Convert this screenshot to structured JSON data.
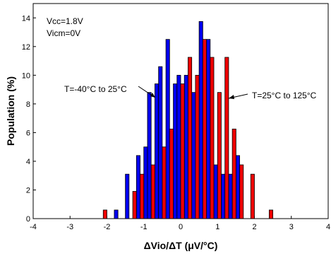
{
  "chart_data": {
    "type": "bar",
    "xlabel": "ΔVio/ΔT (μV/°C)",
    "ylabel": "Population (%)",
    "xlim": [
      -4,
      4
    ],
    "ylim": [
      0,
      15
    ],
    "xticks": [
      "-4",
      "-3",
      "-2",
      "-1",
      "0",
      "1",
      "2",
      "3",
      "4"
    ],
    "yticks": [
      "0",
      "2",
      "4",
      "6",
      "8",
      "10",
      "12",
      "14"
    ],
    "bar_width": 0.1,
    "grid": false,
    "annotations": {
      "conditions": [
        "Vcc=1.8V",
        "Vicm=0V"
      ],
      "label_left": "T=-40°C to 25°C",
      "label_right": "T=25°C to 125°C"
    },
    "series": [
      {
        "name": "T=-40°C to 25°C",
        "color": "#0000ee",
        "x": [
          -1.75,
          -1.45,
          -1.15,
          -0.95,
          -0.85,
          -0.65,
          -0.55,
          -0.35,
          -0.15,
          -0.05,
          0.15,
          0.35,
          0.55,
          0.75,
          0.95,
          1.15,
          1.35,
          1.55
        ],
        "values": [
          0.6,
          3.1,
          4.4,
          5.0,
          8.8,
          9.4,
          10.6,
          12.5,
          9.4,
          10.0,
          10.0,
          8.8,
          13.75,
          12.5,
          3.75,
          3.1,
          3.1,
          4.4
        ]
      },
      {
        "name": "T=25°C to 125°C",
        "color": "#ee0000",
        "x": [
          -2.05,
          -1.25,
          -1.05,
          -0.75,
          -0.45,
          -0.25,
          0.05,
          0.25,
          0.45,
          0.65,
          0.85,
          1.05,
          1.25,
          1.45,
          1.65,
          1.95,
          2.45
        ],
        "values": [
          0.6,
          1.9,
          3.1,
          3.75,
          5.0,
          6.25,
          9.4,
          11.25,
          10.0,
          12.5,
          11.25,
          8.8,
          11.25,
          6.25,
          3.75,
          3.1,
          0.6
        ]
      }
    ]
  }
}
